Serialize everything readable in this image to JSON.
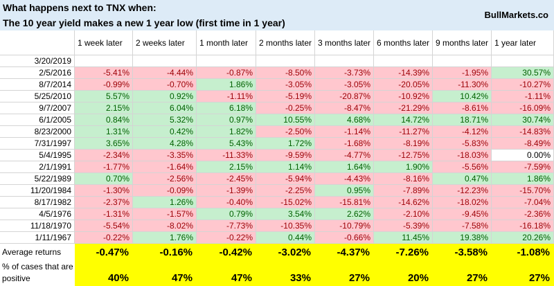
{
  "header": {
    "title": "What happens next to TNX when:",
    "subtitle": "The 10 year yield makes a new 1 year low (first time in 1 year)",
    "brand": "BullMarkets.co"
  },
  "table": {
    "columns": [
      "1 week later",
      "2 weeks later",
      "1 month later",
      "2 months later",
      "3 months later",
      "6 months later",
      "9 months later",
      "1 year later"
    ],
    "current_date": "3/20/2019",
    "rows": [
      {
        "date": "2/5/2016",
        "cells": [
          "-5.41%",
          "-4.44%",
          "-0.87%",
          "-8.50%",
          "-3.73%",
          "-14.39%",
          "-1.95%",
          "30.57%"
        ]
      },
      {
        "date": "8/7/2014",
        "cells": [
          "-0.99%",
          "-0.70%",
          "1.86%",
          "-3.05%",
          "-3.05%",
          "-20.05%",
          "-11.30%",
          "-10.27%"
        ]
      },
      {
        "date": "5/25/2010",
        "cells": [
          "5.57%",
          "0.92%",
          "-1.11%",
          "-5.19%",
          "-20.87%",
          "-10.92%",
          "10.42%",
          "-1.11%"
        ]
      },
      {
        "date": "9/7/2007",
        "cells": [
          "2.15%",
          "6.04%",
          "6.18%",
          "-0.25%",
          "-8.47%",
          "-21.29%",
          "-8.61%",
          "-16.09%"
        ]
      },
      {
        "date": "6/1/2005",
        "cells": [
          "0.84%",
          "5.32%",
          "0.97%",
          "10.55%",
          "4.68%",
          "14.72%",
          "18.71%",
          "30.74%"
        ]
      },
      {
        "date": "8/23/2000",
        "cells": [
          "1.31%",
          "0.42%",
          "1.82%",
          "-2.50%",
          "-1.14%",
          "-11.27%",
          "-4.12%",
          "-14.83%"
        ]
      },
      {
        "date": "7/31/1997",
        "cells": [
          "3.65%",
          "4.28%",
          "5.43%",
          "1.72%",
          "-1.68%",
          "-8.19%",
          "-5.83%",
          "-8.49%"
        ]
      },
      {
        "date": "5/4/1995",
        "cells": [
          "-2.34%",
          "-3.35%",
          "-11.33%",
          "-9.59%",
          "-4.77%",
          "-12.75%",
          "-18.03%",
          "0.00%"
        ]
      },
      {
        "date": "2/1/1991",
        "cells": [
          "-1.77%",
          "-1.64%",
          "2.15%",
          "1.14%",
          "1.64%",
          "1.90%",
          "-5.56%",
          "-7.59%"
        ]
      },
      {
        "date": "5/22/1989",
        "cells": [
          "0.70%",
          "-2.56%",
          "-2.45%",
          "-5.94%",
          "-4.43%",
          "-8.16%",
          "0.47%",
          "1.86%"
        ]
      },
      {
        "date": "11/20/1984",
        "cells": [
          "-1.30%",
          "-0.09%",
          "-1.39%",
          "-2.25%",
          "0.95%",
          "-7.89%",
          "-12.23%",
          "-15.70%"
        ]
      },
      {
        "date": "8/17/1982",
        "cells": [
          "-2.37%",
          "1.26%",
          "-0.40%",
          "-15.02%",
          "-15.81%",
          "-14.62%",
          "-18.02%",
          "-7.04%"
        ]
      },
      {
        "date": "4/5/1976",
        "cells": [
          "-1.31%",
          "-1.57%",
          "0.79%",
          "3.54%",
          "2.62%",
          "-2.10%",
          "-9.45%",
          "-2.36%"
        ]
      },
      {
        "date": "11/18/1970",
        "cells": [
          "-5.54%",
          "-8.02%",
          "-7.73%",
          "-10.35%",
          "-10.79%",
          "-5.39%",
          "-7.58%",
          "-16.18%"
        ]
      },
      {
        "date": "1/11/1967",
        "cells": [
          "-0.22%",
          "1.76%",
          "-0.22%",
          "0.44%",
          "-0.66%",
          "11.45%",
          "19.38%",
          "20.26%"
        ]
      }
    ],
    "summary": [
      {
        "label": "Average returns",
        "cells": [
          "-0.47%",
          "-0.16%",
          "-0.42%",
          "-3.02%",
          "-4.37%",
          "-7.26%",
          "-3.58%",
          "-1.08%"
        ]
      },
      {
        "label": "% of cases that are positive",
        "cells": [
          "40%",
          "47%",
          "47%",
          "33%",
          "27%",
          "20%",
          "27%",
          "27%"
        ]
      }
    ]
  }
}
